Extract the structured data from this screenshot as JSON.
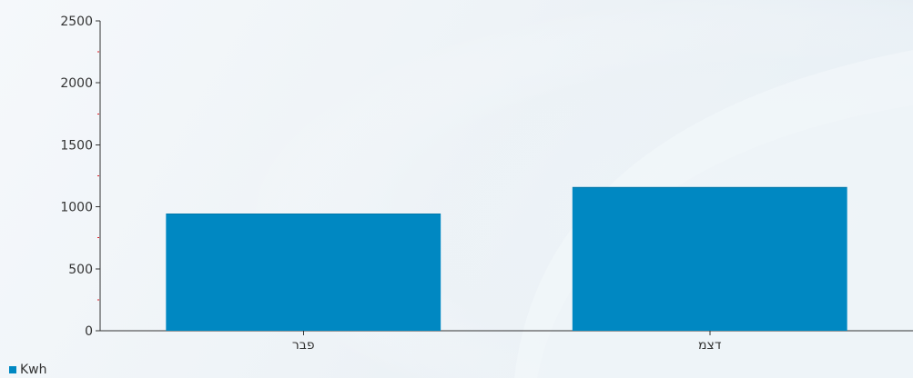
{
  "chart_data": {
    "type": "bar",
    "categories": [
      "פבר",
      "דצמ"
    ],
    "series": [
      {
        "name": "Kwh",
        "values": [
          945,
          1160
        ],
        "color": "#0088c2"
      }
    ],
    "title": "",
    "xlabel": "",
    "ylabel": "",
    "ylim": [
      0,
      2500
    ],
    "yticks": [
      "0",
      "500",
      "1000",
      "1500",
      "2000",
      "2500"
    ],
    "grid": false,
    "legend_position": "bottom-left"
  }
}
